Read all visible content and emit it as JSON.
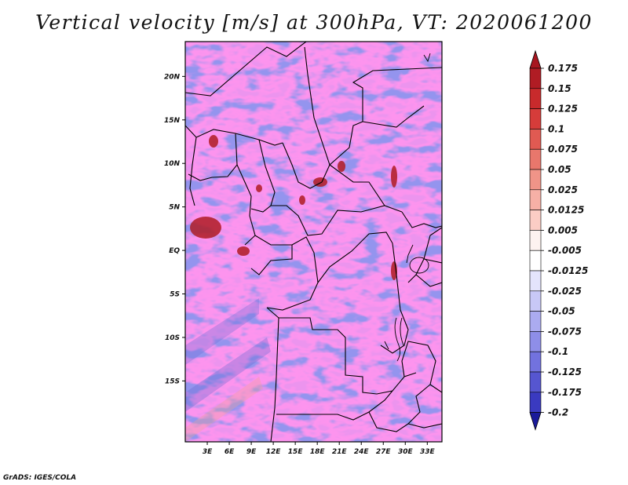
{
  "title": "Vertical velocity [m/s] at 300hPa, VT: 2020061200",
  "credit": "GrADS: IGES/COLA",
  "map": {
    "lon_min": 0,
    "lon_max": 35,
    "lat_min": -22,
    "lat_max": 24,
    "lat_ticks": [
      {
        "value": 20,
        "label": "20N"
      },
      {
        "value": 15,
        "label": "15N"
      },
      {
        "value": 10,
        "label": "10N"
      },
      {
        "value": 5,
        "label": "5N"
      },
      {
        "value": 0,
        "label": "EQ"
      },
      {
        "value": -5,
        "label": "5S"
      },
      {
        "value": -10,
        "label": "10S"
      },
      {
        "value": -15,
        "label": "15S"
      }
    ],
    "lon_ticks": [
      {
        "value": 3,
        "label": "3E"
      },
      {
        "value": 6,
        "label": "6E"
      },
      {
        "value": 9,
        "label": "9E"
      },
      {
        "value": 12,
        "label": "12E"
      },
      {
        "value": 15,
        "label": "15E"
      },
      {
        "value": 18,
        "label": "18E"
      },
      {
        "value": 21,
        "label": "21E"
      },
      {
        "value": 24,
        "label": "24E"
      },
      {
        "value": 27,
        "label": "27E"
      },
      {
        "value": 30,
        "label": "30E"
      },
      {
        "value": 33,
        "label": "33E"
      }
    ]
  },
  "colorbar": {
    "levels": [
      {
        "label": "0.175",
        "color": "#b01c24"
      },
      {
        "label": "0.15",
        "color": "#c82a2c"
      },
      {
        "label": "0.125",
        "color": "#d63c3a"
      },
      {
        "label": "0.1",
        "color": "#e05a52"
      },
      {
        "label": "0.075",
        "color": "#e8776c"
      },
      {
        "label": "0.05",
        "color": "#f09488"
      },
      {
        "label": "0.025",
        "color": "#f6b0a6"
      },
      {
        "label": "0.0125",
        "color": "#fbcdc5"
      },
      {
        "label": "0.005",
        "color": "#fde6e1"
      },
      {
        "label": "-0.005",
        "color": "#ffffff"
      },
      {
        "label": "-0.0125",
        "color": "#e4e4fc"
      },
      {
        "label": "-0.025",
        "color": "#c8c8f6"
      },
      {
        "label": "-0.05",
        "color": "#ababf0"
      },
      {
        "label": "-0.075",
        "color": "#8e8ee8"
      },
      {
        "label": "-0.1",
        "color": "#7272de"
      },
      {
        "label": "-0.125",
        "color": "#5656d0"
      },
      {
        "label": "-0.175",
        "color": "#3a3ac0"
      },
      {
        "label": "-0.2",
        "color": "#2222a8"
      }
    ],
    "top_color": "#a81620",
    "bottom_color": "#1a1a9a",
    "mid_color": "#fdf2f0"
  }
}
